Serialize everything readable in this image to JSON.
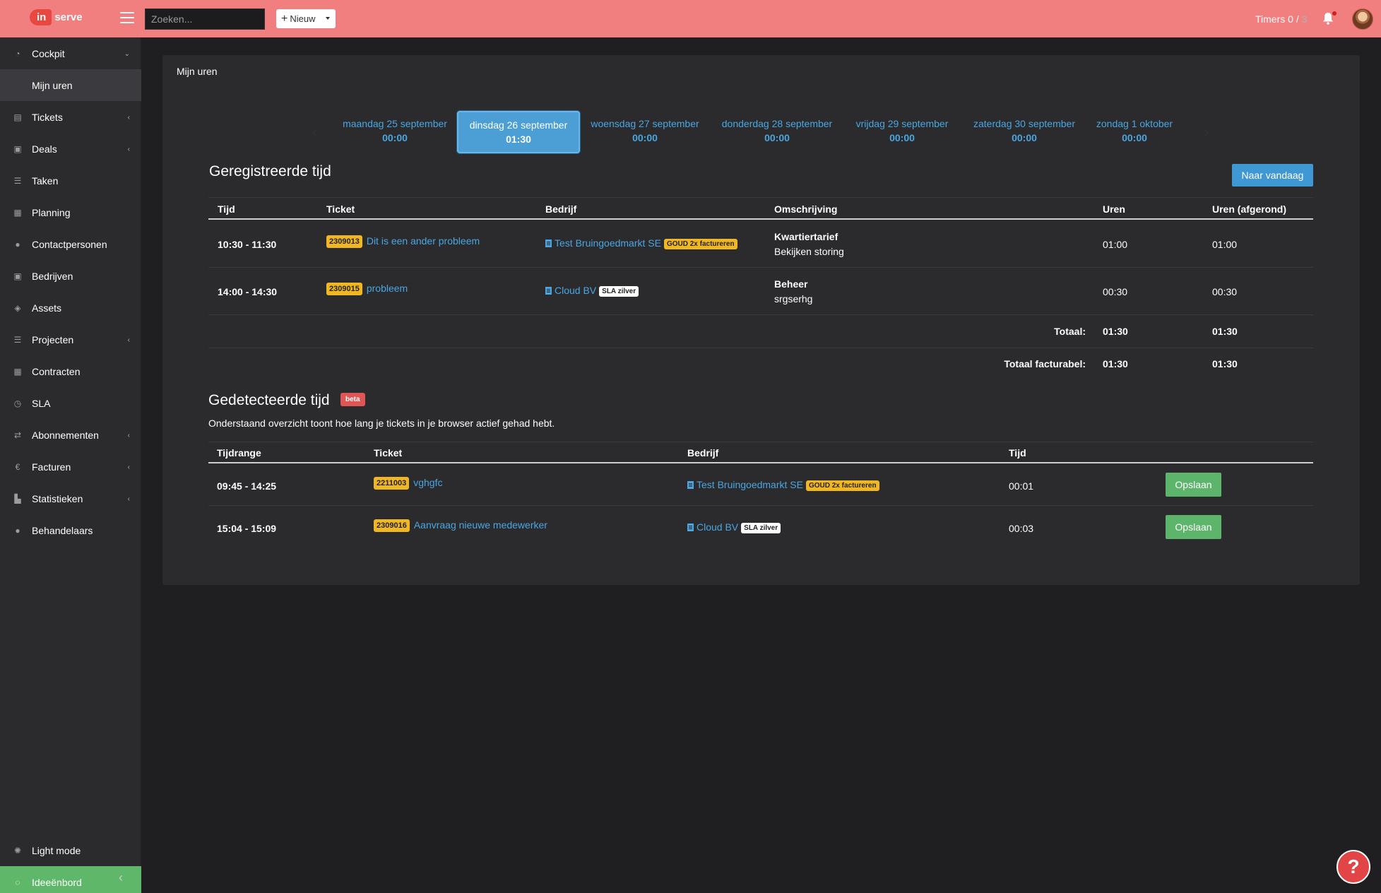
{
  "header": {
    "logo_badge": "in",
    "logo_text": "serve",
    "search_placeholder": "Zoeken...",
    "new_button": "Nieuw",
    "timers_label": "Timers 0 /",
    "timers_total": "3"
  },
  "sidebar": {
    "items": [
      {
        "label": "Cockpit",
        "icon": "gauge-icon"
      },
      {
        "label": "Mijn uren"
      },
      {
        "label": "Tickets",
        "icon": "chat-icon"
      },
      {
        "label": "Deals",
        "icon": "briefcase-icon"
      },
      {
        "label": "Taken",
        "icon": "list-icon"
      },
      {
        "label": "Planning",
        "icon": "calendar-icon"
      },
      {
        "label": "Contactpersonen",
        "icon": "users-icon"
      },
      {
        "label": "Bedrijven",
        "icon": "building-icon"
      },
      {
        "label": "Assets",
        "icon": "cubes-icon"
      },
      {
        "label": "Projecten",
        "icon": "tasks-icon"
      },
      {
        "label": "Contracten",
        "icon": "calendar-grid-icon"
      },
      {
        "label": "SLA",
        "icon": "clock-icon"
      },
      {
        "label": "Abonnementen",
        "icon": "repeat-icon"
      },
      {
        "label": "Facturen",
        "icon": "euro-icon"
      },
      {
        "label": "Statistieken",
        "icon": "chart-icon"
      },
      {
        "label": "Behandelaars",
        "icon": "user-icon"
      }
    ],
    "light_mode": "Light mode",
    "ideeenbord": "Ideeënbord"
  },
  "main": {
    "title": "Mijn uren",
    "days": [
      {
        "label": "maandag 25 september",
        "hours": "00:00"
      },
      {
        "label": "dinsdag 26 september",
        "hours": "01:30"
      },
      {
        "label": "woensdag 27 september",
        "hours": "00:00"
      },
      {
        "label": "donderdag 28 september",
        "hours": "00:00"
      },
      {
        "label": "vrijdag 29 september",
        "hours": "00:00"
      },
      {
        "label": "zaterdag 30 september",
        "hours": "00:00"
      },
      {
        "label": "zondag 1 oktober",
        "hours": "00:00"
      }
    ],
    "registered": {
      "heading": "Geregistreerde tijd",
      "today_button": "Naar vandaag",
      "columns": [
        "Tijd",
        "Ticket",
        "Bedrijf",
        "Omschrijving",
        "Uren",
        "Uren (afgerond)"
      ],
      "rows": [
        {
          "time": "10:30 - 11:30",
          "ticket_no": "2309013",
          "ticket": "Dit is een ander probleem",
          "company": "Test Bruingoedmarkt SE",
          "company_tag": "GOUD 2x factureren",
          "desc_title": "Kwartiertarief",
          "desc": "Bekijken storing",
          "hours": "01:00",
          "hours_rounded": "01:00"
        },
        {
          "time": "14:00 - 14:30",
          "ticket_no": "2309015",
          "ticket": "probleem",
          "company": "Cloud BV",
          "company_tag": "SLA zilver",
          "desc_title": "Beheer",
          "desc": "srgserhg",
          "hours": "00:30",
          "hours_rounded": "00:30"
        }
      ],
      "total_label": "Totaal:",
      "total": "01:30",
      "total_rounded": "01:30",
      "billable_label": "Totaal facturabel:",
      "billable": "01:30",
      "billable_rounded": "01:30"
    },
    "detected": {
      "heading": "Gedetecteerde tijd",
      "badge": "beta",
      "description": "Onderstaand overzicht toont hoe lang je tickets in je browser actief gehad hebt.",
      "columns": [
        "Tijdrange",
        "Ticket",
        "Bedrijf",
        "Tijd"
      ],
      "rows": [
        {
          "range": "09:45 - 14:25",
          "ticket_no": "2211003",
          "ticket": "vghgfc",
          "company": "Test Bruingoedmarkt SE",
          "company_tag": "GOUD 2x factureren",
          "time": "00:01",
          "save": "Opslaan"
        },
        {
          "range": "15:04 - 15:09",
          "ticket_no": "2309016",
          "ticket": "Aanvraag nieuwe medewerker",
          "company": "Cloud BV",
          "company_tag": "SLA zilver",
          "time": "00:03",
          "save": "Opslaan"
        }
      ]
    }
  },
  "help": "?"
}
